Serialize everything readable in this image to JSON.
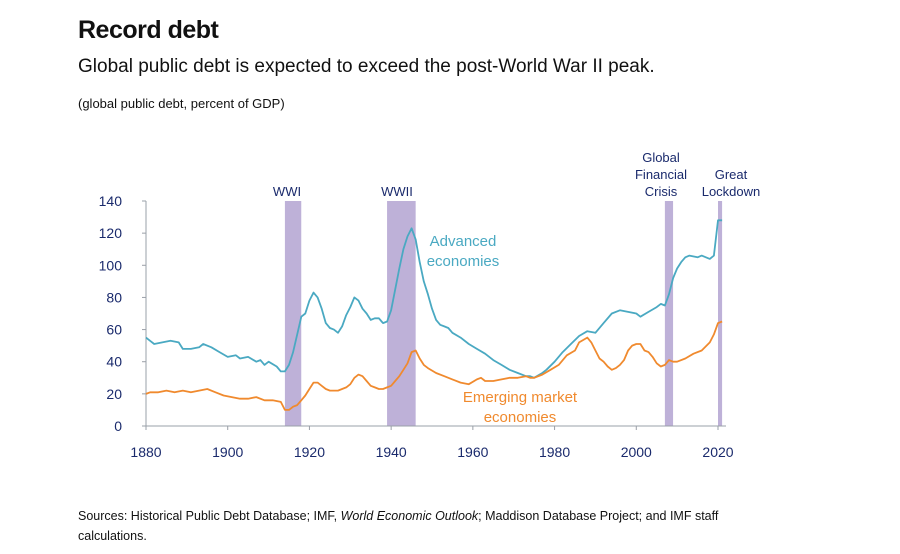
{
  "header": {
    "title": "Record debt",
    "subtitle": "Global public debt is expected to exceed the post-World War II peak.",
    "unit_note": "(global public debt, percent of GDP)"
  },
  "sources": {
    "prefix": "Sources: Historical Public Debt Database; IMF, ",
    "italic": "World Economic Outlook",
    "suffix": "; Maddison Database Project; and IMF staff calculations."
  },
  "colors": {
    "advanced": "#4aa9c2",
    "emerging": "#f08a2e",
    "shading": "#b3a3d1",
    "axis_text": "#1a2a6c"
  },
  "chart_data": {
    "type": "line",
    "title": "Record debt",
    "xlabel": "",
    "ylabel": "percent of GDP",
    "xlim": [
      1880,
      2021
    ],
    "ylim": [
      0,
      140
    ],
    "x_ticks": [
      1880,
      1900,
      1920,
      1940,
      1960,
      1980,
      2000,
      2020
    ],
    "y_ticks": [
      0,
      20,
      40,
      60,
      80,
      100,
      120,
      140
    ],
    "shaded_periods": [
      {
        "label": "WWI",
        "lines": [
          "WWI"
        ],
        "start": 1914,
        "end": 1918
      },
      {
        "label": "WWII",
        "lines": [
          "WWII"
        ],
        "start": 1939,
        "end": 1946
      },
      {
        "label": "Global Financial Crisis",
        "lines": [
          "Global",
          "Financial",
          "Crisis"
        ],
        "start": 2007,
        "end": 2009
      },
      {
        "label": "Great Lockdown",
        "lines": [
          "Great",
          "Lockdown"
        ],
        "start": 2020,
        "end": 2021
      }
    ],
    "series": [
      {
        "name": "Advanced economies",
        "label_lines": [
          "Advanced",
          "economies"
        ],
        "points": [
          [
            1880,
            55
          ],
          [
            1881,
            53
          ],
          [
            1882,
            51
          ],
          [
            1884,
            52
          ],
          [
            1886,
            53
          ],
          [
            1888,
            52
          ],
          [
            1889,
            48
          ],
          [
            1891,
            48
          ],
          [
            1893,
            49
          ],
          [
            1894,
            51
          ],
          [
            1896,
            49
          ],
          [
            1898,
            46
          ],
          [
            1900,
            43
          ],
          [
            1902,
            44
          ],
          [
            1903,
            42
          ],
          [
            1905,
            43
          ],
          [
            1907,
            40
          ],
          [
            1908,
            41
          ],
          [
            1909,
            38
          ],
          [
            1910,
            40
          ],
          [
            1912,
            37
          ],
          [
            1913,
            34
          ],
          [
            1914,
            34
          ],
          [
            1915,
            38
          ],
          [
            1916,
            46
          ],
          [
            1917,
            57
          ],
          [
            1918,
            68
          ],
          [
            1919,
            70
          ],
          [
            1920,
            78
          ],
          [
            1921,
            83
          ],
          [
            1922,
            80
          ],
          [
            1923,
            73
          ],
          [
            1924,
            64
          ],
          [
            1925,
            61
          ],
          [
            1926,
            60
          ],
          [
            1927,
            58
          ],
          [
            1928,
            62
          ],
          [
            1929,
            69
          ],
          [
            1930,
            74
          ],
          [
            1931,
            80
          ],
          [
            1932,
            78
          ],
          [
            1933,
            73
          ],
          [
            1934,
            70
          ],
          [
            1935,
            66
          ],
          [
            1936,
            67
          ],
          [
            1937,
            67
          ],
          [
            1938,
            64
          ],
          [
            1939,
            65
          ],
          [
            1940,
            72
          ],
          [
            1941,
            85
          ],
          [
            1942,
            98
          ],
          [
            1943,
            110
          ],
          [
            1944,
            118
          ],
          [
            1945,
            123
          ],
          [
            1946,
            116
          ],
          [
            1947,
            102
          ],
          [
            1948,
            90
          ],
          [
            1949,
            82
          ],
          [
            1950,
            73
          ],
          [
            1951,
            66
          ],
          [
            1952,
            63
          ],
          [
            1953,
            62
          ],
          [
            1954,
            61
          ],
          [
            1955,
            58
          ],
          [
            1957,
            55
          ],
          [
            1959,
            51
          ],
          [
            1961,
            48
          ],
          [
            1963,
            45
          ],
          [
            1965,
            41
          ],
          [
            1967,
            38
          ],
          [
            1969,
            35
          ],
          [
            1971,
            33
          ],
          [
            1973,
            31
          ],
          [
            1974,
            31
          ],
          [
            1975,
            30
          ],
          [
            1977,
            33
          ],
          [
            1978,
            35
          ],
          [
            1980,
            40
          ],
          [
            1982,
            46
          ],
          [
            1984,
            51
          ],
          [
            1986,
            56
          ],
          [
            1988,
            59
          ],
          [
            1990,
            58
          ],
          [
            1992,
            64
          ],
          [
            1994,
            70
          ],
          [
            1996,
            72
          ],
          [
            1998,
            71
          ],
          [
            2000,
            70
          ],
          [
            2001,
            68
          ],
          [
            2003,
            71
          ],
          [
            2005,
            74
          ],
          [
            2006,
            76
          ],
          [
            2007,
            75
          ],
          [
            2008,
            82
          ],
          [
            2009,
            92
          ],
          [
            2010,
            98
          ],
          [
            2011,
            102
          ],
          [
            2012,
            105
          ],
          [
            2013,
            106
          ],
          [
            2015,
            105
          ],
          [
            2016,
            106
          ],
          [
            2018,
            104
          ],
          [
            2019,
            106
          ],
          [
            2020,
            128
          ],
          [
            2021,
            128
          ]
        ]
      },
      {
        "name": "Emerging market economies",
        "label_lines": [
          "Emerging market",
          "economies"
        ],
        "points": [
          [
            1880,
            20
          ],
          [
            1881,
            21
          ],
          [
            1883,
            21
          ],
          [
            1885,
            22
          ],
          [
            1887,
            21
          ],
          [
            1889,
            22
          ],
          [
            1891,
            21
          ],
          [
            1893,
            22
          ],
          [
            1895,
            23
          ],
          [
            1897,
            21
          ],
          [
            1899,
            19
          ],
          [
            1901,
            18
          ],
          [
            1903,
            17
          ],
          [
            1905,
            17
          ],
          [
            1907,
            18
          ],
          [
            1909,
            16
          ],
          [
            1911,
            16
          ],
          [
            1913,
            15
          ],
          [
            1914,
            10
          ],
          [
            1915,
            10
          ],
          [
            1916,
            12
          ],
          [
            1917,
            13
          ],
          [
            1918,
            16
          ],
          [
            1919,
            19
          ],
          [
            1920,
            23
          ],
          [
            1921,
            27
          ],
          [
            1922,
            27
          ],
          [
            1923,
            25
          ],
          [
            1924,
            23
          ],
          [
            1925,
            22
          ],
          [
            1927,
            22
          ],
          [
            1928,
            23
          ],
          [
            1929,
            24
          ],
          [
            1930,
            26
          ],
          [
            1931,
            30
          ],
          [
            1932,
            32
          ],
          [
            1933,
            31
          ],
          [
            1934,
            28
          ],
          [
            1935,
            25
          ],
          [
            1936,
            24
          ],
          [
            1937,
            23
          ],
          [
            1938,
            23
          ],
          [
            1939,
            24
          ],
          [
            1940,
            25
          ],
          [
            1941,
            28
          ],
          [
            1942,
            31
          ],
          [
            1943,
            35
          ],
          [
            1944,
            39
          ],
          [
            1945,
            46
          ],
          [
            1946,
            47
          ],
          [
            1947,
            42
          ],
          [
            1948,
            38
          ],
          [
            1949,
            36
          ],
          [
            1951,
            33
          ],
          [
            1953,
            31
          ],
          [
            1955,
            29
          ],
          [
            1957,
            27
          ],
          [
            1959,
            26
          ],
          [
            1961,
            29
          ],
          [
            1962,
            30
          ],
          [
            1963,
            28
          ],
          [
            1965,
            28
          ],
          [
            1967,
            29
          ],
          [
            1969,
            30
          ],
          [
            1971,
            30
          ],
          [
            1973,
            31
          ],
          [
            1974,
            30
          ],
          [
            1975,
            30
          ],
          [
            1977,
            32
          ],
          [
            1979,
            35
          ],
          [
            1981,
            38
          ],
          [
            1983,
            44
          ],
          [
            1985,
            47
          ],
          [
            1986,
            52
          ],
          [
            1988,
            55
          ],
          [
            1989,
            52
          ],
          [
            1990,
            47
          ],
          [
            1991,
            42
          ],
          [
            1992,
            40
          ],
          [
            1993,
            37
          ],
          [
            1994,
            35
          ],
          [
            1995,
            36
          ],
          [
            1996,
            38
          ],
          [
            1997,
            41
          ],
          [
            1998,
            47
          ],
          [
            1999,
            50
          ],
          [
            2000,
            51
          ],
          [
            2001,
            51
          ],
          [
            2002,
            47
          ],
          [
            2003,
            46
          ],
          [
            2004,
            43
          ],
          [
            2005,
            39
          ],
          [
            2006,
            37
          ],
          [
            2007,
            38
          ],
          [
            2008,
            41
          ],
          [
            2009,
            40
          ],
          [
            2010,
            40
          ],
          [
            2012,
            42
          ],
          [
            2014,
            45
          ],
          [
            2016,
            47
          ],
          [
            2018,
            52
          ],
          [
            2019,
            57
          ],
          [
            2020,
            64
          ],
          [
            2021,
            65
          ]
        ]
      }
    ]
  }
}
